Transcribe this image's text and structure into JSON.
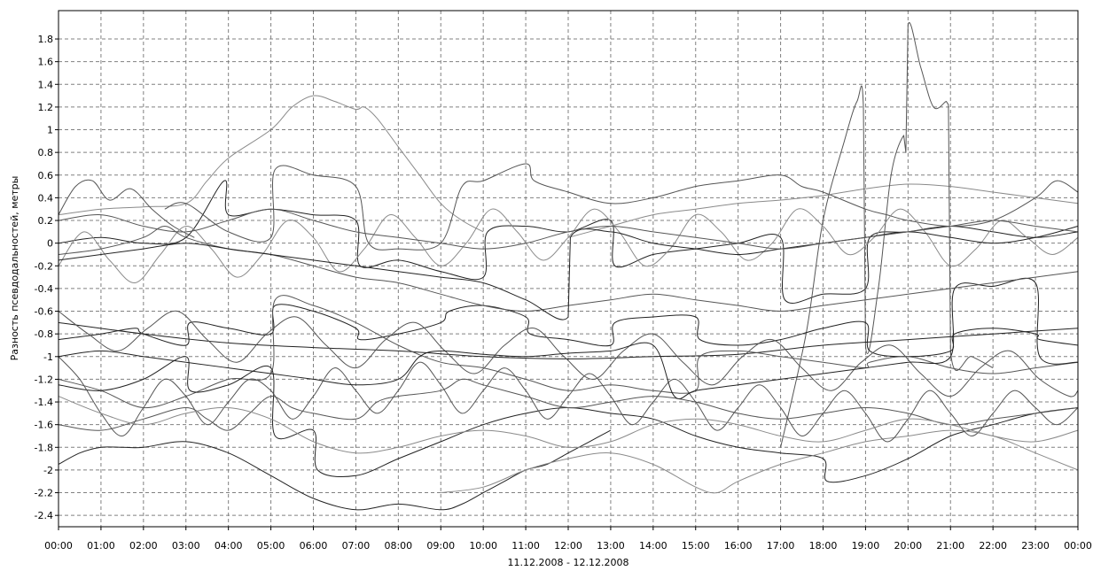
{
  "chart_data": {
    "type": "line",
    "title": "",
    "ylabel": "Разность псевдодальностей, метры",
    "xlabel": "11.12.2008 - 12.12.2008",
    "x_ticks": [
      "00:00",
      "01:00",
      "02:00",
      "03:00",
      "04:00",
      "05:00",
      "06:00",
      "07:00",
      "08:00",
      "09:00",
      "10:00",
      "11:00",
      "12:00",
      "13:00",
      "14:00",
      "15:00",
      "16:00",
      "17:00",
      "18:00",
      "19:00",
      "20:00",
      "21:00",
      "22:00",
      "23:00",
      "00:00"
    ],
    "y_ticks": [
      "1.8",
      "1.6",
      "1.4",
      "1.2",
      "1",
      "0.8",
      "0.6",
      "0.4",
      "0.2",
      "0",
      "-0.2",
      "-0.4",
      "-0.6",
      "-0.8",
      "-1",
      "-1.2",
      "-1.4",
      "-1.6",
      "-1.8",
      "-2",
      "-2.2",
      "-2.4"
    ],
    "xlim": [
      0,
      24
    ],
    "ylim": [
      -2.5,
      2.05
    ],
    "grid": true,
    "legend": "none",
    "colors": {
      "dark": "#222222",
      "mid": "#555555",
      "light": "#8a8a8a",
      "grid": "#808080"
    },
    "series": [
      {
        "tone": "light",
        "x": [
          0,
          1,
          2,
          3,
          3.5,
          4,
          5,
          5.5,
          6,
          6.5,
          7,
          7.2,
          7.5,
          8,
          8.5,
          9,
          9.5,
          10
        ],
        "y": [
          0.25,
          0.3,
          0.32,
          0.35,
          0.55,
          0.75,
          1.0,
          1.2,
          1.3,
          1.25,
          1.18,
          1.2,
          1.1,
          0.85,
          0.6,
          0.35,
          0.2,
          0.1
        ]
      },
      {
        "tone": "dark",
        "x": [
          0,
          1,
          2,
          3,
          3.9,
          4,
          5,
          6,
          7,
          7.1,
          8,
          9,
          10,
          10.1,
          11,
          12,
          13,
          13.1,
          14,
          15,
          16,
          17,
          17.1,
          18,
          19,
          19.1,
          20,
          21,
          22,
          23,
          24
        ],
        "y": [
          0.0,
          0.05,
          0.0,
          0.05,
          0.55,
          0.25,
          0.3,
          0.25,
          0.2,
          -0.2,
          -0.15,
          -0.25,
          -0.3,
          0.1,
          0.15,
          0.1,
          0.2,
          -0.2,
          -0.1,
          -0.05,
          0.0,
          0.05,
          -0.5,
          -0.45,
          -0.4,
          0.05,
          0.1,
          0.15,
          0.1,
          0.05,
          0.1
        ]
      },
      {
        "tone": "mid",
        "x": [
          0,
          0.4,
          0.8,
          1.2,
          1.7,
          2.2,
          2.7,
          3.2
        ],
        "y": [
          0.25,
          0.5,
          0.55,
          0.38,
          0.48,
          0.3,
          0.15,
          0.05
        ]
      },
      {
        "tone": "mid",
        "x": [
          2.5,
          3,
          4,
          5,
          5.1,
          6,
          7,
          7.3,
          8,
          9,
          9.5,
          10,
          11,
          11.2,
          12,
          13,
          14,
          15,
          16,
          17,
          17.5,
          18,
          19,
          19.5,
          20,
          21,
          22,
          23,
          23.5,
          24
        ],
        "y": [
          0.3,
          0.35,
          0.1,
          0.05,
          0.65,
          0.6,
          0.5,
          0.0,
          -0.05,
          0.0,
          0.5,
          0.55,
          0.7,
          0.55,
          0.45,
          0.35,
          0.4,
          0.5,
          0.55,
          0.6,
          0.5,
          0.45,
          0.3,
          0.25,
          0.2,
          0.15,
          0.2,
          0.4,
          0.55,
          0.45
        ]
      },
      {
        "tone": "light",
        "x": [
          12,
          13,
          14,
          15,
          16,
          17,
          18,
          19,
          20,
          21,
          22,
          23,
          24
        ],
        "y": [
          0.05,
          0.15,
          0.25,
          0.3,
          0.35,
          0.38,
          0.42,
          0.48,
          0.52,
          0.5,
          0.45,
          0.4,
          0.35
        ]
      },
      {
        "tone": "mid",
        "x": [
          17,
          17.6,
          18,
          18.5,
          18.8,
          18.95,
          19,
          19.3,
          19.6,
          19.9,
          19.95,
          20,
          20.3,
          20.6,
          20.9,
          20.95,
          21,
          21.5,
          22
        ],
        "y": [
          -1.8,
          -0.8,
          0.2,
          0.9,
          1.25,
          1.2,
          -0.9,
          -0.4,
          0.6,
          0.95,
          0.8,
          1.92,
          1.55,
          1.2,
          1.25,
          1.22,
          -0.95,
          -1.0,
          -1.1
        ]
      },
      {
        "tone": "dark",
        "x": [
          0,
          1,
          1.8,
          2,
          3,
          3.1,
          4,
          5,
          5.1,
          6,
          7,
          7.1,
          8,
          9,
          9.2,
          10,
          11,
          11.1,
          12,
          13,
          13.1,
          14,
          15,
          15.1,
          16,
          17,
          18,
          19,
          19.1,
          20,
          21,
          21.1,
          22,
          23,
          23.1,
          24
        ],
        "y": [
          -0.85,
          -0.8,
          -0.75,
          -0.8,
          -0.9,
          -0.7,
          -0.75,
          -0.8,
          -0.55,
          -0.6,
          -0.75,
          -0.85,
          -0.8,
          -0.7,
          -0.6,
          -0.55,
          -0.65,
          -0.8,
          -0.85,
          -0.9,
          -0.7,
          -0.65,
          -0.65,
          -0.85,
          -0.9,
          -0.85,
          -0.75,
          -0.7,
          -0.95,
          -1.0,
          -0.95,
          -0.8,
          -0.75,
          -0.8,
          -0.85,
          -0.9
        ]
      },
      {
        "tone": "dark",
        "x": [
          0,
          2,
          4,
          6,
          8,
          10,
          12,
          14,
          16,
          18,
          20,
          22,
          24
        ],
        "y": [
          -0.7,
          -0.8,
          -0.88,
          -0.92,
          -0.95,
          -1.0,
          -1.02,
          -1.0,
          -0.98,
          -0.9,
          -0.85,
          -0.8,
          -0.75
        ]
      },
      {
        "tone": "mid",
        "x": [
          0,
          1,
          2,
          3,
          4,
          5,
          5.1,
          6,
          7,
          8,
          9,
          10,
          11,
          12,
          13,
          14,
          15,
          15.1,
          16,
          17,
          18,
          19,
          19.1,
          20,
          21,
          22,
          23,
          24
        ],
        "y": [
          -1.2,
          -1.3,
          -1.45,
          -1.35,
          -1.2,
          -1.15,
          -0.5,
          -0.55,
          -0.7,
          -0.9,
          -1.05,
          -1.1,
          -1.2,
          -1.3,
          -1.25,
          -1.3,
          -1.3,
          -1.0,
          -0.95,
          -1.0,
          -1.05,
          -1.1,
          -1.05,
          -1.0,
          -1.1,
          -1.15,
          -1.1,
          -1.05
        ]
      },
      {
        "tone": "dark",
        "x": [
          0,
          1,
          2,
          3,
          3.1,
          4,
          5,
          5.1,
          6,
          6.1,
          7,
          8,
          9,
          10,
          11,
          12,
          13,
          14,
          15,
          16,
          17,
          18,
          18.1,
          19,
          20,
          21,
          22,
          23,
          24
        ],
        "y": [
          -1.25,
          -1.3,
          -1.2,
          -1.0,
          -1.3,
          -1.25,
          -1.1,
          -1.7,
          -1.65,
          -2.0,
          -2.05,
          -1.9,
          -1.75,
          -1.6,
          -1.5,
          -1.45,
          -1.5,
          -1.55,
          -1.7,
          -1.8,
          -1.85,
          -1.9,
          -2.1,
          -2.05,
          -1.9,
          -1.7,
          -1.6,
          -1.5,
          -1.45
        ]
      },
      {
        "tone": "dark",
        "x": [
          0,
          0.5,
          1,
          1.5,
          2,
          3,
          4,
          5,
          6,
          7,
          8,
          9,
          9.5,
          10,
          10.5,
          11,
          11.5,
          12,
          12.5,
          13
        ],
        "y": [
          -1.95,
          -1.85,
          -1.8,
          -1.8,
          -1.8,
          -1.75,
          -1.85,
          -2.05,
          -2.25,
          -2.35,
          -2.3,
          -2.35,
          -2.3,
          -2.2,
          -2.1,
          -2.0,
          -1.95,
          -1.85,
          -1.75,
          -1.65
        ]
      },
      {
        "tone": "light",
        "x": [
          9,
          10,
          11,
          12,
          13,
          14,
          15,
          15.5,
          16,
          17,
          18,
          19,
          20,
          21,
          22,
          23,
          24
        ],
        "y": [
          -2.2,
          -2.15,
          -2.0,
          -1.9,
          -1.85,
          -1.95,
          -2.15,
          -2.2,
          -2.1,
          -1.95,
          -1.85,
          -1.75,
          -1.7,
          -1.65,
          -1.7,
          -1.85,
          -2.0
        ]
      },
      {
        "tone": "mid",
        "x": [
          0,
          1,
          2,
          3,
          3.5,
          4,
          4.5,
          5,
          5.5,
          6,
          7,
          7.5,
          8,
          9,
          9.5,
          10,
          11,
          12,
          13,
          14,
          15,
          16,
          17,
          18,
          19,
          20,
          21,
          22,
          23,
          24
        ],
        "y": [
          -1.6,
          -1.65,
          -1.55,
          -1.45,
          -1.55,
          -1.65,
          -1.5,
          -1.35,
          -1.45,
          -1.5,
          -1.55,
          -1.4,
          -1.35,
          -1.3,
          -1.2,
          -1.25,
          -1.35,
          -1.45,
          -1.4,
          -1.35,
          -1.4,
          -1.5,
          -1.55,
          -1.5,
          -1.45,
          -1.5,
          -1.6,
          -1.55,
          -1.5,
          -1.45
        ]
      },
      {
        "tone": "mid",
        "x": [
          0,
          0.5,
          1,
          1.5,
          2,
          2.5,
          3,
          3.5,
          4,
          4.5,
          5,
          5.5,
          6,
          6.5,
          7,
          7.5,
          8,
          8.5,
          9,
          9.5,
          10,
          10.5,
          11,
          11.5,
          12,
          12.5,
          13,
          13.5,
          14,
          14.5,
          15,
          15.5,
          16,
          16.5,
          17,
          17.5,
          18,
          18.5,
          19,
          19.5,
          20,
          20.5,
          21,
          21.5,
          22,
          22.5,
          23,
          23.5,
          24
        ],
        "y": [
          -1.0,
          -1.2,
          -1.5,
          -1.7,
          -1.45,
          -1.2,
          -1.35,
          -1.6,
          -1.4,
          -1.2,
          -1.3,
          -1.55,
          -1.35,
          -1.1,
          -1.3,
          -1.5,
          -1.3,
          -1.05,
          -1.25,
          -1.5,
          -1.3,
          -1.1,
          -1.3,
          -1.55,
          -1.35,
          -1.15,
          -1.35,
          -1.6,
          -1.4,
          -1.2,
          -1.4,
          -1.65,
          -1.45,
          -1.25,
          -1.45,
          -1.7,
          -1.5,
          -1.3,
          -1.5,
          -1.75,
          -1.55,
          -1.3,
          -1.5,
          -1.7,
          -1.5,
          -1.3,
          -1.45,
          -1.6,
          -1.45
        ]
      },
      {
        "tone": "light",
        "x": [
          0,
          0.6,
          1.2,
          1.8,
          2.4,
          3,
          3.6,
          4.2,
          4.8,
          5.4,
          6,
          6.6,
          7.2,
          7.8,
          8.4,
          9,
          9.6,
          10.2,
          10.8,
          11.4,
          12,
          12.6,
          13.2,
          13.8,
          14.4,
          15,
          15.6,
          16.2,
          16.8,
          17.4,
          18,
          18.6,
          19.2,
          19.8,
          20.4,
          21,
          21.6,
          22.2,
          22.8,
          23.4,
          24
        ],
        "y": [
          -0.2,
          0.1,
          -0.15,
          -0.35,
          -0.1,
          0.15,
          -0.05,
          -0.3,
          -0.1,
          0.2,
          0.05,
          -0.25,
          -0.05,
          0.25,
          0.05,
          -0.2,
          0.0,
          0.3,
          0.1,
          -0.15,
          0.05,
          0.3,
          0.1,
          -0.2,
          -0.05,
          0.25,
          0.1,
          -0.15,
          0.0,
          0.3,
          0.15,
          -0.1,
          0.05,
          0.3,
          0.1,
          -0.2,
          -0.05,
          0.2,
          0.05,
          -0.1,
          0.05
        ]
      },
      {
        "tone": "mid",
        "x": [
          0,
          0.7,
          1.4,
          2.1,
          2.8,
          3.5,
          4.2,
          4.9,
          5.6,
          6.3,
          7,
          7.7,
          8.4,
          9.1,
          9.8,
          10.5,
          11.2,
          11.9,
          12.6,
          13.3,
          14,
          14.7,
          15.4,
          16.1,
          16.8,
          17.5,
          18.2,
          18.9,
          19.6,
          20.3,
          21,
          21.7,
          22.4,
          23.1,
          23.8,
          24
        ],
        "y": [
          -0.6,
          -0.8,
          -0.95,
          -0.75,
          -0.6,
          -0.85,
          -1.05,
          -0.8,
          -0.65,
          -0.9,
          -1.1,
          -0.85,
          -0.7,
          -0.95,
          -1.15,
          -0.9,
          -0.75,
          -1.0,
          -1.2,
          -0.95,
          -0.8,
          -1.05,
          -1.25,
          -1.0,
          -0.85,
          -1.1,
          -1.3,
          -1.05,
          -0.9,
          -1.15,
          -1.35,
          -1.1,
          -0.95,
          -1.2,
          -1.35,
          -1.3
        ]
      },
      {
        "tone": "dark",
        "x": [
          0,
          1,
          2,
          3,
          4,
          5,
          6,
          7,
          8,
          8.5,
          9,
          10,
          11,
          12,
          13,
          14,
          14.5,
          15,
          16,
          17,
          18,
          19,
          20,
          21,
          21.1,
          22,
          23,
          23.1,
          24
        ],
        "y": [
          -1.0,
          -0.95,
          -1.0,
          -1.05,
          -1.1,
          -1.15,
          -1.2,
          -1.25,
          -1.2,
          -1.0,
          -0.95,
          -0.98,
          -1.0,
          -0.97,
          -0.95,
          -0.9,
          -1.35,
          -1.3,
          -1.25,
          -1.2,
          -1.15,
          -1.1,
          -1.05,
          -1.0,
          -0.4,
          -0.38,
          -0.35,
          -1.0,
          -1.05
        ]
      },
      {
        "tone": "mid",
        "x": [
          0,
          1,
          2,
          2.5,
          3,
          4,
          5,
          6,
          7,
          8,
          9,
          10,
          11,
          12,
          13,
          14,
          15,
          16,
          17,
          18,
          19,
          20,
          21,
          22,
          23,
          24
        ],
        "y": [
          -0.1,
          -0.05,
          0.05,
          0.15,
          0.05,
          -0.05,
          -0.1,
          -0.2,
          -0.3,
          -0.35,
          -0.45,
          -0.55,
          -0.6,
          -0.55,
          -0.5,
          -0.45,
          -0.5,
          -0.55,
          -0.6,
          -0.55,
          -0.5,
          -0.45,
          -0.4,
          -0.35,
          -0.3,
          -0.25
        ]
      },
      {
        "tone": "dark",
        "x": [
          0,
          1,
          2,
          3,
          4,
          5,
          6,
          7,
          8,
          9,
          10,
          11,
          12,
          12.05,
          13,
          14,
          15,
          16,
          17,
          18,
          19,
          20,
          21,
          22,
          23,
          24
        ],
        "y": [
          -0.15,
          -0.1,
          -0.05,
          0.0,
          -0.05,
          -0.1,
          -0.15,
          -0.2,
          -0.25,
          -0.3,
          -0.35,
          -0.5,
          -0.65,
          0.05,
          0.1,
          0.0,
          -0.05,
          -0.1,
          -0.05,
          0.0,
          0.05,
          0.1,
          0.05,
          0.0,
          0.05,
          0.15
        ]
      },
      {
        "tone": "light",
        "x": [
          0,
          1,
          2,
          3,
          4,
          5,
          6,
          7,
          8,
          9,
          10,
          11,
          12,
          13,
          14,
          15,
          16,
          17,
          18,
          19,
          20,
          21,
          22,
          23,
          24
        ],
        "y": [
          -1.35,
          -1.5,
          -1.6,
          -1.5,
          -1.45,
          -1.55,
          -1.75,
          -1.85,
          -1.8,
          -1.7,
          -1.65,
          -1.7,
          -1.8,
          -1.75,
          -1.6,
          -1.55,
          -1.6,
          -1.7,
          -1.75,
          -1.65,
          -1.55,
          -1.6,
          -1.7,
          -1.75,
          -1.65
        ]
      },
      {
        "tone": "mid",
        "x": [
          0,
          1,
          2,
          3,
          4,
          5,
          6,
          7,
          8,
          9,
          10,
          11,
          12,
          13,
          14,
          15,
          16,
          17,
          18,
          19,
          20,
          21,
          22,
          23,
          24
        ],
        "y": [
          0.2,
          0.25,
          0.15,
          0.1,
          0.2,
          0.3,
          0.2,
          0.1,
          0.05,
          0.0,
          -0.05,
          0.0,
          0.1,
          0.15,
          0.1,
          0.05,
          0.0,
          -0.05,
          0.0,
          0.05,
          0.1,
          0.15,
          0.2,
          0.15,
          0.1
        ]
      }
    ]
  }
}
